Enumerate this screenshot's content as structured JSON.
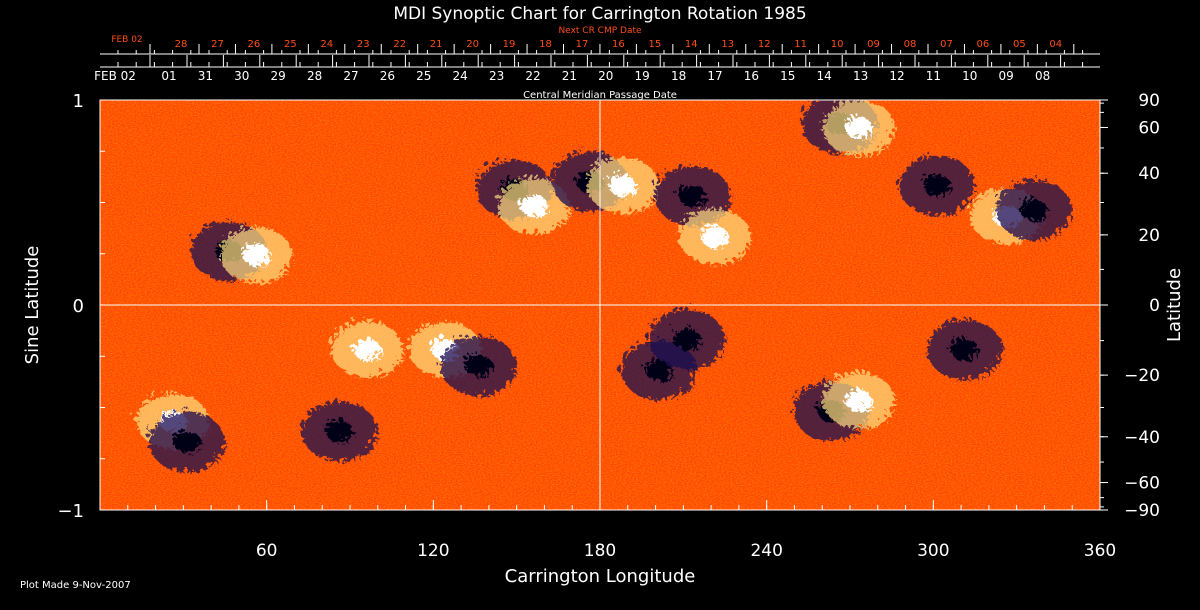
{
  "chart_data": {
    "type": "heatmap",
    "title": "MDI Synoptic Chart for Carrington Rotation 1985",
    "xlabel": "Carrington Longitude",
    "ylabel_left": "Sine Latitude",
    "ylabel_right": "Latitude",
    "xlim": [
      0,
      360
    ],
    "ylim": [
      -1,
      1
    ],
    "x_ticks": [
      60,
      120,
      180,
      240,
      300,
      360
    ],
    "y_ticks_left": [
      {
        "value": 1,
        "label": "1"
      },
      {
        "value": 0,
        "label": "0"
      },
      {
        "value": -1,
        "label": "−1"
      }
    ],
    "y_ticks_right": [
      {
        "lat": 90,
        "label": "90"
      },
      {
        "lat": 60,
        "label": "60"
      },
      {
        "lat": 40,
        "label": "40"
      },
      {
        "lat": 20,
        "label": "20"
      },
      {
        "lat": 0,
        "label": "0"
      },
      {
        "lat": -20,
        "label": "−20"
      },
      {
        "lat": -40,
        "label": "−40"
      },
      {
        "lat": -60,
        "label": "−60"
      },
      {
        "lat": -90,
        "label": "−90"
      }
    ],
    "cmp_axis": {
      "title": "Central Meridian Passage Date",
      "labels": [
        "FEB 02",
        "01",
        "31",
        "30",
        "29",
        "28",
        "27",
        "26",
        "25",
        "24",
        "23",
        "22",
        "21",
        "20",
        "19",
        "18",
        "17",
        "16",
        "15",
        "14",
        "13",
        "12",
        "11",
        "10",
        "09",
        "08"
      ]
    },
    "next_cmp_axis": {
      "title": "Next CR CMP Date",
      "labels": [
        "FEB 02",
        "28",
        "27",
        "26",
        "25",
        "24",
        "23",
        "22",
        "21",
        "20",
        "19",
        "18",
        "17",
        "16",
        "15",
        "14",
        "13",
        "12",
        "11",
        "10",
        "09",
        "08",
        "07",
        "06",
        "05",
        "04"
      ]
    },
    "colors": {
      "background_field": "#ff3a05",
      "positive_strong": "#ffffff",
      "positive_mid": "#ffe080",
      "negative_strong": "#000018",
      "negative_mid": "#1a0a50",
      "next_axis_text": "#ff4d1a",
      "frame": "#ffffff"
    },
    "active_regions": [
      {
        "lon": 45,
        "sinlat": 0.28,
        "polarity": "negative"
      },
      {
        "lon": 55,
        "sinlat": 0.26,
        "polarity": "positive"
      },
      {
        "lon": 25,
        "sinlat": -0.55,
        "polarity": "positive"
      },
      {
        "lon": 30,
        "sinlat": -0.65,
        "polarity": "negative"
      },
      {
        "lon": 85,
        "sinlat": -0.6,
        "polarity": "negative"
      },
      {
        "lon": 95,
        "sinlat": -0.2,
        "polarity": "positive"
      },
      {
        "lon": 123,
        "sinlat": -0.2,
        "polarity": "positive"
      },
      {
        "lon": 135,
        "sinlat": -0.28,
        "polarity": "negative"
      },
      {
        "lon": 148,
        "sinlat": 0.58,
        "polarity": "negative"
      },
      {
        "lon": 155,
        "sinlat": 0.5,
        "polarity": "positive"
      },
      {
        "lon": 175,
        "sinlat": 0.62,
        "polarity": "negative"
      },
      {
        "lon": 187,
        "sinlat": 0.6,
        "polarity": "positive"
      },
      {
        "lon": 212,
        "sinlat": 0.55,
        "polarity": "negative"
      },
      {
        "lon": 220,
        "sinlat": 0.35,
        "polarity": "positive"
      },
      {
        "lon": 200,
        "sinlat": -0.3,
        "polarity": "negative"
      },
      {
        "lon": 210,
        "sinlat": -0.15,
        "polarity": "negative"
      },
      {
        "lon": 262,
        "sinlat": -0.5,
        "polarity": "negative"
      },
      {
        "lon": 272,
        "sinlat": -0.45,
        "polarity": "positive"
      },
      {
        "lon": 265,
        "sinlat": 0.9,
        "polarity": "negative"
      },
      {
        "lon": 272,
        "sinlat": 0.88,
        "polarity": "positive"
      },
      {
        "lon": 310,
        "sinlat": -0.2,
        "polarity": "negative"
      },
      {
        "lon": 325,
        "sinlat": 0.45,
        "polarity": "positive"
      },
      {
        "lon": 335,
        "sinlat": 0.48,
        "polarity": "negative"
      },
      {
        "lon": 300,
        "sinlat": 0.6,
        "polarity": "negative"
      }
    ]
  },
  "footer": {
    "plot_made": "Plot Made  9-Nov-2007"
  }
}
